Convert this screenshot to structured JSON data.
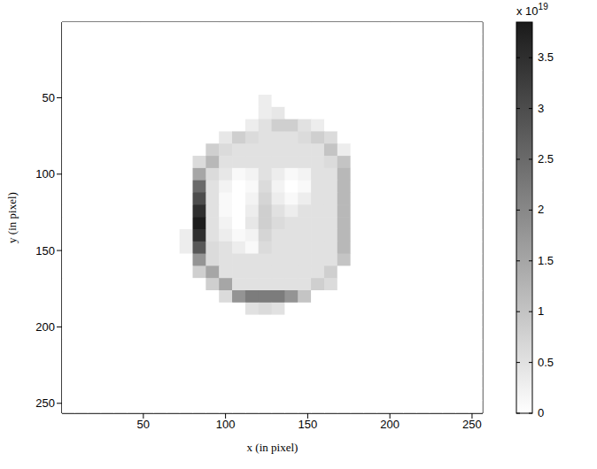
{
  "chart_data": {
    "type": "heatmap",
    "x_label": "x (in pixel)",
    "y_label": "y (in pixel)",
    "color": "#1a1a1a",
    "x": [
      4,
      12,
      20,
      28,
      36,
      44,
      52,
      60,
      68,
      76,
      84,
      92,
      100,
      108,
      116,
      124,
      132,
      140,
      148,
      156,
      164,
      172,
      180,
      188,
      196,
      204,
      212,
      220,
      228,
      236,
      244,
      252
    ],
    "y": [
      4,
      12,
      20,
      28,
      36,
      44,
      52,
      60,
      68,
      76,
      84,
      92,
      100,
      108,
      116,
      124,
      132,
      140,
      148,
      156,
      164,
      172,
      180,
      188,
      196,
      204,
      212,
      220,
      228,
      236,
      244,
      252
    ],
    "z": [
      [
        0,
        0,
        0,
        0,
        0,
        0,
        0,
        0,
        0,
        0,
        0,
        0,
        0,
        0,
        0,
        0,
        0,
        0,
        0,
        0,
        0,
        0,
        0,
        0,
        0,
        0,
        0,
        0,
        0,
        0,
        0,
        0
      ],
      [
        0,
        0,
        0,
        0,
        0,
        0,
        0,
        0,
        0,
        0,
        0,
        0,
        0,
        0,
        0,
        0,
        0,
        0,
        0,
        0,
        0,
        0,
        0,
        0,
        0,
        0,
        0,
        0,
        0,
        0,
        0,
        0
      ],
      [
        0,
        0,
        0,
        0,
        0,
        0,
        0,
        0,
        0,
        0,
        0,
        0,
        0,
        0,
        0,
        0,
        0,
        0,
        0,
        0,
        0,
        0,
        0,
        0,
        0,
        0,
        0,
        0,
        0,
        0,
        0,
        0
      ],
      [
        0,
        0,
        0,
        0,
        0,
        0,
        0,
        0,
        0,
        0,
        0,
        0,
        0,
        0,
        0,
        0,
        0,
        0,
        0,
        0,
        0,
        0,
        0,
        0,
        0,
        0,
        0,
        0,
        0,
        0,
        0,
        0
      ],
      [
        0,
        0,
        0,
        0,
        0,
        0,
        0,
        0,
        0,
        0,
        0,
        0,
        0,
        0,
        0,
        0,
        0,
        0,
        0,
        0,
        0,
        0,
        0,
        0,
        0,
        0,
        0,
        0,
        0,
        0,
        0,
        0
      ],
      [
        0,
        0,
        0,
        0,
        0,
        0,
        0,
        0,
        0,
        0,
        0,
        0,
        0,
        0,
        0,
        0,
        0,
        0,
        0,
        0,
        0,
        0,
        0,
        0,
        0,
        0,
        0,
        0,
        0,
        0,
        0,
        0
      ],
      [
        0,
        0,
        0,
        0,
        0,
        0,
        0,
        0,
        0,
        0,
        0,
        0,
        0,
        0,
        0,
        0.3,
        0,
        0,
        0,
        0,
        0,
        0,
        0,
        0,
        0,
        0,
        0,
        0,
        0,
        0,
        0,
        0
      ],
      [
        0,
        0,
        0,
        0,
        0,
        0,
        0,
        0,
        0,
        0,
        0,
        0,
        0,
        0,
        0,
        0.3,
        0.4,
        0,
        0,
        0,
        0,
        0,
        0,
        0,
        0,
        0,
        0,
        0,
        0,
        0,
        0,
        0
      ],
      [
        0,
        0,
        0,
        0,
        0,
        0,
        0,
        0,
        0,
        0,
        0,
        0,
        0,
        0,
        0.3,
        0.5,
        0.8,
        0.8,
        0.5,
        0.3,
        0,
        0,
        0,
        0,
        0,
        0,
        0,
        0,
        0,
        0,
        0,
        0
      ],
      [
        0,
        0,
        0,
        0,
        0,
        0,
        0,
        0,
        0,
        0,
        0,
        0,
        0.4,
        0.8,
        0.6,
        0.5,
        0.5,
        0.5,
        0.6,
        0.8,
        0.6,
        0,
        0,
        0,
        0,
        0,
        0,
        0,
        0,
        0,
        0,
        0
      ],
      [
        0,
        0,
        0,
        0,
        0,
        0,
        0,
        0,
        0,
        0,
        0,
        0.8,
        0.6,
        0.5,
        0.5,
        0.5,
        0.5,
        0.5,
        0.5,
        0.5,
        1.0,
        0.3,
        0,
        0,
        0,
        0,
        0,
        0,
        0,
        0,
        0,
        0
      ],
      [
        0,
        0,
        0,
        0,
        0,
        0,
        0,
        0,
        0,
        0,
        0.6,
        1.2,
        0.5,
        0.5,
        0.5,
        0.5,
        0.5,
        0.5,
        0.5,
        0.5,
        0.6,
        1.0,
        0,
        0,
        0,
        0,
        0,
        0,
        0,
        0,
        0,
        0
      ],
      [
        0,
        0,
        0,
        0,
        0,
        0,
        0,
        0,
        0,
        0,
        1.5,
        0.6,
        0.4,
        0.1,
        0.2,
        0.5,
        0.3,
        0.1,
        0.2,
        0.5,
        0.5,
        1.2,
        0,
        0,
        0,
        0,
        0,
        0,
        0,
        0,
        0,
        0
      ],
      [
        0,
        0,
        0,
        0,
        0,
        0,
        0,
        0,
        0,
        0,
        2.5,
        0.5,
        0.2,
        0,
        0.1,
        0.6,
        0.2,
        0,
        0.1,
        0.5,
        0.5,
        1.2,
        0,
        0,
        0,
        0,
        0,
        0,
        0,
        0,
        0,
        0
      ],
      [
        0,
        0,
        0,
        0,
        0,
        0,
        0,
        0,
        0,
        0,
        3.0,
        0.5,
        0.1,
        0,
        0.2,
        0.7,
        0.3,
        0.1,
        0.3,
        0.5,
        0.5,
        1.2,
        0,
        0,
        0,
        0,
        0,
        0,
        0,
        0,
        0,
        0
      ],
      [
        0,
        0,
        0,
        0,
        0,
        0,
        0,
        0,
        0,
        0,
        3.5,
        0.5,
        0.1,
        0,
        0.3,
        0.8,
        0.5,
        0.3,
        0.5,
        0.5,
        0.5,
        1.2,
        0,
        0,
        0,
        0,
        0,
        0,
        0,
        0,
        0,
        0
      ],
      [
        0,
        0,
        0,
        0,
        0,
        0,
        0,
        0,
        0,
        0,
        3.8,
        0.5,
        0.2,
        0,
        0.4,
        0.8,
        0.6,
        0.5,
        0.5,
        0.5,
        0.5,
        1.2,
        0,
        0,
        0,
        0,
        0,
        0,
        0,
        0,
        0,
        0
      ],
      [
        0,
        0,
        0,
        0,
        0,
        0,
        0,
        0,
        0,
        0.3,
        3.5,
        0.5,
        0.3,
        0.1,
        0.2,
        0.7,
        0.5,
        0.5,
        0.5,
        0.5,
        0.5,
        1.2,
        0,
        0,
        0,
        0,
        0,
        0,
        0,
        0,
        0,
        0
      ],
      [
        0,
        0,
        0,
        0,
        0,
        0,
        0,
        0,
        0,
        0.3,
        2.8,
        0.6,
        0.5,
        0.3,
        0.1,
        0.6,
        0.5,
        0.5,
        0.5,
        0.5,
        0.5,
        1.2,
        0,
        0,
        0,
        0,
        0,
        0,
        0,
        0,
        0,
        0
      ],
      [
        0,
        0,
        0,
        0,
        0,
        0,
        0,
        0,
        0,
        0,
        1.8,
        0.6,
        0.5,
        0.5,
        0.5,
        0.5,
        0.5,
        0.5,
        0.5,
        0.5,
        0.5,
        1.0,
        0,
        0,
        0,
        0,
        0,
        0,
        0,
        0,
        0,
        0
      ],
      [
        0,
        0,
        0,
        0,
        0,
        0,
        0,
        0,
        0,
        0,
        0.8,
        1.5,
        0.5,
        0.5,
        0.5,
        0.5,
        0.5,
        0.5,
        0.5,
        0.5,
        0.8,
        0,
        0,
        0,
        0,
        0,
        0,
        0,
        0,
        0,
        0,
        0
      ],
      [
        0,
        0,
        0,
        0,
        0,
        0,
        0,
        0,
        0,
        0,
        0,
        0.8,
        1.5,
        0.5,
        0.5,
        0.5,
        0.5,
        0.5,
        0.5,
        0.8,
        0.6,
        0,
        0,
        0,
        0,
        0,
        0,
        0,
        0,
        0,
        0,
        0
      ],
      [
        0,
        0,
        0,
        0,
        0,
        0,
        0,
        0,
        0,
        0,
        0,
        0,
        0.6,
        1.8,
        2.2,
        2.2,
        2.2,
        1.8,
        1.0,
        0,
        0,
        0,
        0,
        0,
        0,
        0,
        0,
        0,
        0,
        0,
        0,
        0
      ],
      [
        0,
        0,
        0,
        0,
        0,
        0,
        0,
        0,
        0,
        0,
        0,
        0,
        0,
        0,
        0.5,
        0.6,
        0.5,
        0,
        0,
        0,
        0,
        0,
        0,
        0,
        0,
        0,
        0,
        0,
        0,
        0,
        0,
        0
      ],
      [
        0,
        0,
        0,
        0,
        0,
        0,
        0,
        0,
        0,
        0,
        0,
        0,
        0,
        0,
        0,
        0,
        0,
        0,
        0,
        0,
        0,
        0,
        0,
        0,
        0,
        0,
        0,
        0,
        0,
        0,
        0,
        0
      ],
      [
        0,
        0,
        0,
        0,
        0,
        0,
        0,
        0,
        0,
        0,
        0,
        0,
        0,
        0,
        0,
        0,
        0,
        0,
        0,
        0,
        0,
        0,
        0,
        0,
        0,
        0,
        0,
        0,
        0,
        0,
        0,
        0
      ],
      [
        0,
        0,
        0,
        0,
        0,
        0,
        0,
        0,
        0,
        0,
        0,
        0,
        0,
        0,
        0,
        0,
        0,
        0,
        0,
        0,
        0,
        0,
        0,
        0,
        0,
        0,
        0,
        0,
        0,
        0,
        0,
        0
      ],
      [
        0,
        0,
        0,
        0,
        0,
        0,
        0,
        0,
        0,
        0,
        0,
        0,
        0,
        0,
        0,
        0,
        0,
        0,
        0,
        0,
        0,
        0,
        0,
        0,
        0,
        0,
        0,
        0,
        0,
        0,
        0,
        0
      ],
      [
        0,
        0,
        0,
        0,
        0,
        0,
        0,
        0,
        0,
        0,
        0,
        0,
        0,
        0,
        0,
        0,
        0,
        0,
        0,
        0,
        0,
        0,
        0,
        0,
        0,
        0,
        0,
        0,
        0,
        0,
        0,
        0
      ],
      [
        0,
        0,
        0,
        0,
        0,
        0,
        0,
        0,
        0,
        0,
        0,
        0,
        0,
        0,
        0,
        0,
        0,
        0,
        0,
        0,
        0,
        0,
        0,
        0,
        0,
        0,
        0,
        0,
        0,
        0,
        0,
        0
      ],
      [
        0,
        0,
        0,
        0,
        0,
        0,
        0,
        0,
        0,
        0,
        0,
        0,
        0,
        0,
        0,
        0,
        0,
        0,
        0,
        0,
        0,
        0,
        0,
        0,
        0,
        0,
        0,
        0,
        0,
        0,
        0,
        0
      ],
      [
        0,
        0,
        0,
        0,
        0,
        0,
        0,
        0,
        0,
        0,
        0,
        0,
        0,
        0,
        0,
        0,
        0,
        0,
        0,
        0,
        0,
        0,
        0,
        0,
        0,
        0,
        0,
        0,
        0,
        0,
        0,
        0
      ]
    ],
    "xlim": [
      0.5,
      256.5
    ],
    "ylim": [
      0.5,
      256.5
    ],
    "xticks": [
      50,
      100,
      150,
      200,
      250
    ],
    "yticks": [
      50,
      100,
      150,
      200,
      250
    ],
    "colorbar": {
      "range": [
        0,
        3.85
      ],
      "ticks": [
        0,
        0.5,
        1,
        1.5,
        2,
        2.5,
        3,
        3.5
      ],
      "multiplier_base": "x 10",
      "multiplier_exponent": "19"
    }
  }
}
